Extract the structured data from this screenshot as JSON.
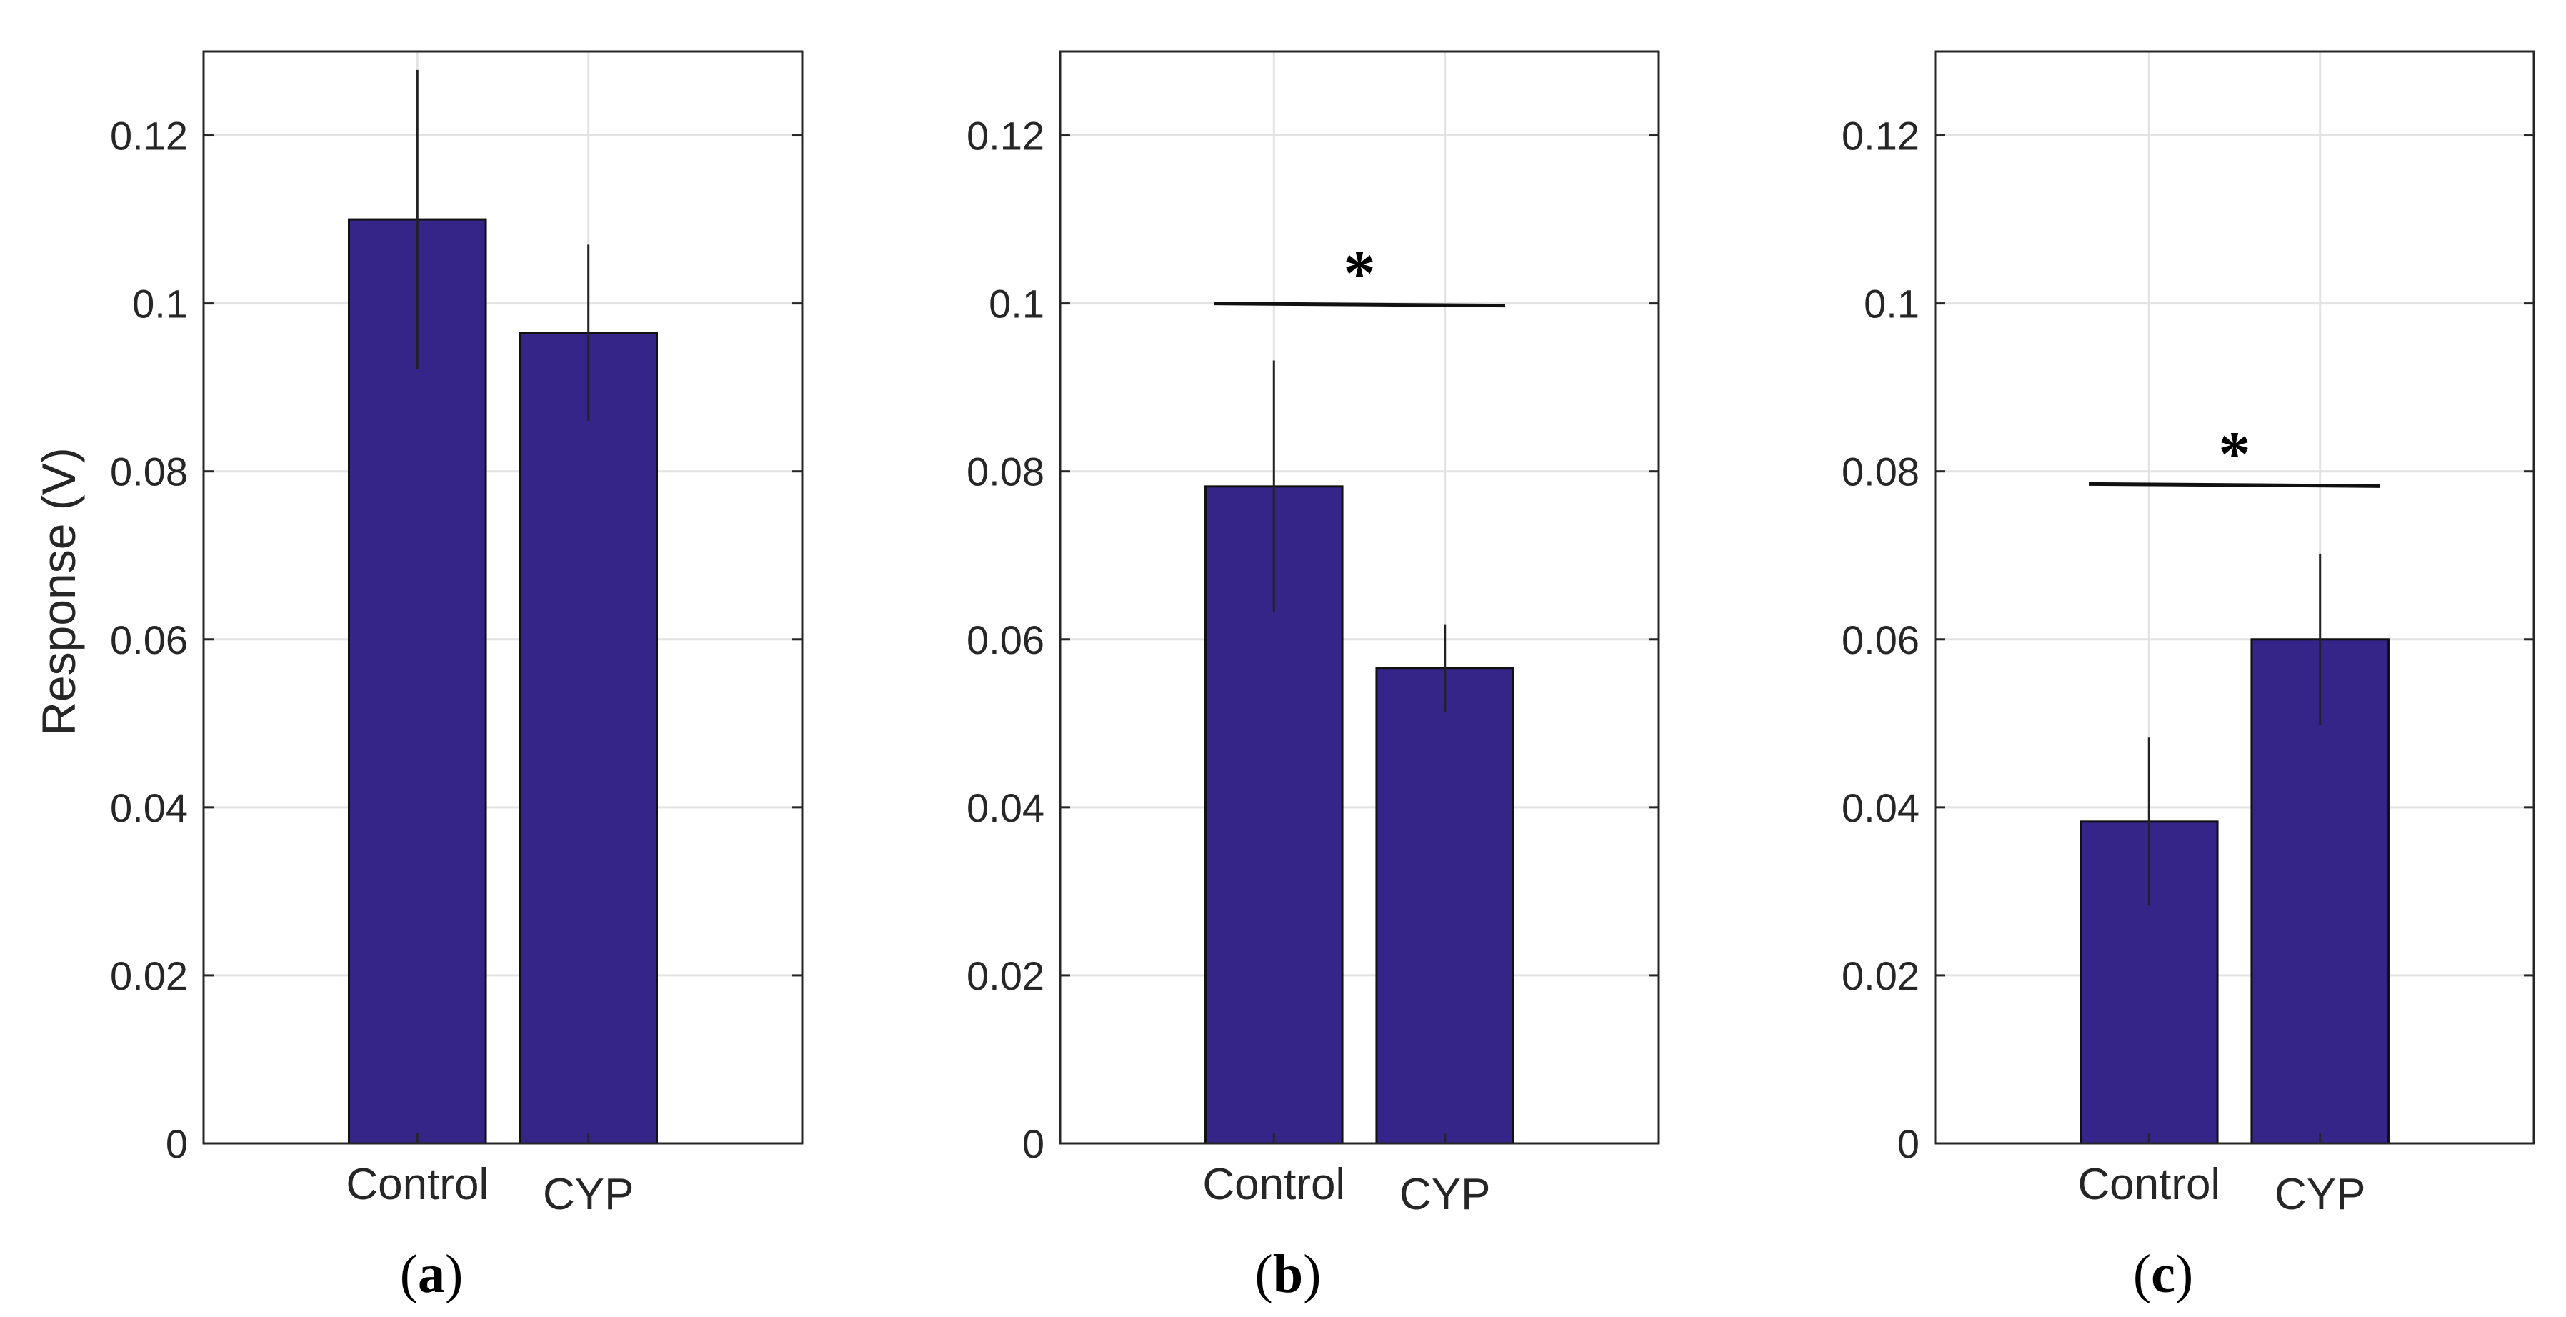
{
  "figure": {
    "ylabel": "Response (V)"
  },
  "chart_data": [
    {
      "type": "bar",
      "panel_label": "a",
      "categories": [
        "Control",
        "CYP"
      ],
      "values": [
        0.11,
        0.0965
      ],
      "errors": [
        0.0178,
        0.0105
      ],
      "ylabel": "Response (V)",
      "ylim": [
        0,
        0.13
      ],
      "yticks": [
        "0",
        "0.02",
        "0.04",
        "0.06",
        "0.08",
        "0.1",
        "0.12"
      ],
      "grid": true,
      "bar_color": "#352588",
      "significance": null
    },
    {
      "type": "bar",
      "panel_label": "b",
      "categories": [
        "Control",
        "CYP"
      ],
      "values": [
        0.0782,
        0.0566
      ],
      "errors": [
        0.015,
        0.0052
      ],
      "ylabel": "",
      "ylim": [
        0,
        0.13
      ],
      "yticks": [
        "0",
        "0.02",
        "0.04",
        "0.06",
        "0.08",
        "0.1",
        "0.12"
      ],
      "grid": true,
      "bar_color": "#352588",
      "significance": {
        "symbol": "*",
        "level": 0.1
      }
    },
    {
      "type": "bar",
      "panel_label": "c",
      "categories": [
        "Control",
        "CYP"
      ],
      "values": [
        0.0383,
        0.06
      ],
      "errors": [
        0.01,
        0.0102
      ],
      "ylabel": "",
      "ylim": [
        0,
        0.13
      ],
      "yticks": [
        "0",
        "0.02",
        "0.04",
        "0.06",
        "0.08",
        "0.1",
        "0.12"
      ],
      "grid": true,
      "bar_color": "#352588",
      "significance": {
        "symbol": "*",
        "level": 0.0785
      }
    }
  ]
}
